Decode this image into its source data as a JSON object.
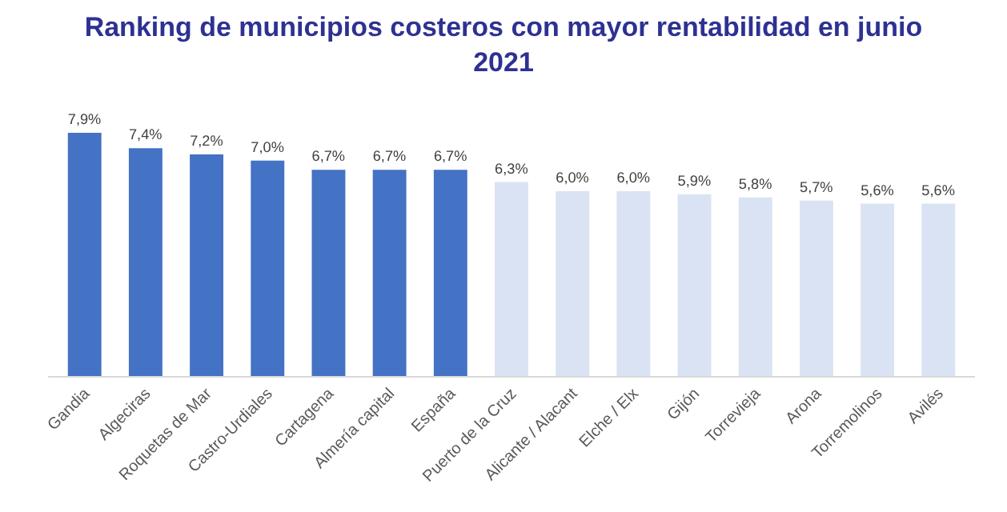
{
  "chart_data": {
    "type": "bar",
    "title": "Ranking de municipios costeros con mayor rentabilidad en junio 2021",
    "categories": [
      "Gandia",
      "Algeciras",
      "Roquetas de Mar",
      "Castro-Urdiales",
      "Cartagena",
      "Almería capital",
      "España",
      "Puerto de la Cruz",
      "Alicante / Alacant",
      "Elche / Elx",
      "Gijón",
      "Torrevieja",
      "Arona",
      "Torremolinos",
      "Avilés"
    ],
    "values": [
      7.9,
      7.4,
      7.2,
      7.0,
      6.7,
      6.7,
      6.7,
      6.3,
      6.0,
      6.0,
      5.9,
      5.8,
      5.7,
      5.6,
      5.6
    ],
    "value_labels": [
      "7,9%",
      "7,4%",
      "7,2%",
      "7,0%",
      "6,7%",
      "6,7%",
      "6,7%",
      "6,3%",
      "6,0%",
      "6,0%",
      "5,9%",
      "5,8%",
      "5,7%",
      "5,6%",
      "5,6%"
    ],
    "colors": [
      "#4472c4",
      "#4472c4",
      "#4472c4",
      "#4472c4",
      "#4472c4",
      "#4472c4",
      "#4472c4",
      "#dae3f3",
      "#dae3f3",
      "#dae3f3",
      "#dae3f3",
      "#dae3f3",
      "#dae3f3",
      "#dae3f3",
      "#dae3f3"
    ],
    "legend": false
  }
}
